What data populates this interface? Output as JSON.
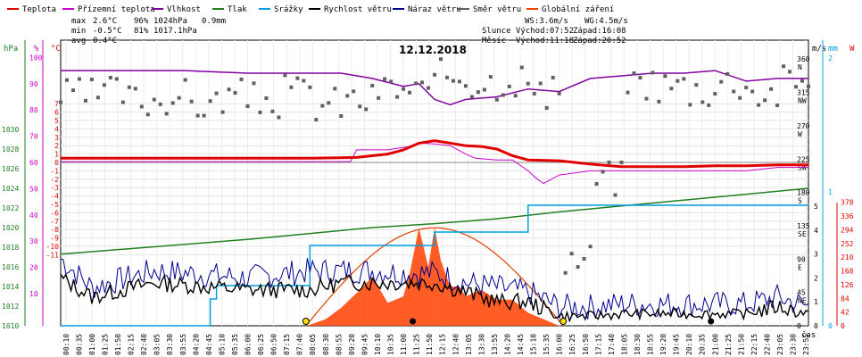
{
  "chart_data": {
    "type": "line",
    "title": "12.12.2018",
    "legend": [
      {
        "key": "teplota",
        "label": "Teplota",
        "color": "#e00000"
      },
      {
        "key": "prizemni",
        "label": "Přízemní teplota",
        "color": "#cc00cc"
      },
      {
        "key": "vlhkost",
        "label": "Vlhkost",
        "color": "#8000a0"
      },
      {
        "key": "tlak",
        "label": "Tlak",
        "color": "#208020"
      },
      {
        "key": "srazky",
        "label": "Srážky",
        "color": "#00a0e0"
      },
      {
        "key": "rychlost",
        "label": "Rychlost větru",
        "color": "#000000"
      },
      {
        "key": "naraz",
        "label": "Náraz větru",
        "color": "#000090"
      },
      {
        "key": "smer",
        "label": "Směr větru",
        "color": "#606060"
      },
      {
        "key": "zareni",
        "label": "Globální záření",
        "color": "#ff4000"
      }
    ],
    "stats": {
      "max_label": "max",
      "max_temp": "2.6°C",
      "max_hum": "96%",
      "max_press": "1024hPa",
      "rain_total": "0.9mm",
      "min_label": "min",
      "min_temp": "-0.5°C",
      "min_hum": "81%",
      "min_press": "1017.1hPa",
      "avg_label": "avg",
      "avg_temp": "0.4°C",
      "ws": "WS:3.6m/s",
      "wg": "WG:4.5m/s",
      "sun_label": "Slunce",
      "sunrise": "Východ:07:52",
      "sunset": "Západ:16:08",
      "moon_label": "Měsíc",
      "moonrise": "Východ:11:18",
      "moonset": "Západ:20:52"
    },
    "axes": {
      "hpa_unit": "hPa",
      "pct_unit": "%",
      "c_unit": "°C",
      "ms_unit": "m/s",
      "mm_unit": "mm",
      "w_unit": "W",
      "time_unit": "čas",
      "hpa_ticks": [
        "1030",
        "1028",
        "1026",
        "1024",
        "1022",
        "1020",
        "1018",
        "1016",
        "1014",
        "1012",
        "1010"
      ],
      "pct_ticks": [
        "100",
        "90",
        "80",
        "70",
        "60",
        "50",
        "40",
        "30",
        "20",
        "10"
      ],
      "c_ticks": [
        "7",
        "6",
        "5",
        "4",
        "3",
        "2",
        "1",
        "0",
        "-1",
        "-2",
        "-3",
        "-4",
        "-5",
        "-6",
        "-7",
        "-8",
        "-9",
        "-10",
        "-11"
      ],
      "dir_ticks": [
        "360",
        "315",
        "270",
        "225",
        "180",
        "135",
        "90",
        "45",
        "0"
      ],
      "dir_letters": [
        "N",
        "NW",
        "W",
        "SW",
        "S",
        "SE",
        "E",
        "NE",
        ""
      ],
      "ms_ticks": [
        "5",
        "4",
        "3",
        "2",
        "1",
        "0"
      ],
      "mm_ticks": [
        "2",
        "1",
        "0"
      ],
      "w_ticks": [
        "378",
        "336",
        "294",
        "252",
        "210",
        "168",
        "126",
        "84",
        "42",
        "0"
      ],
      "time_ticks": [
        "00:10",
        "00:35",
        "01:00",
        "01:25",
        "01:50",
        "02:15",
        "02:40",
        "03:05",
        "03:30",
        "03:55",
        "04:20",
        "04:45",
        "05:10",
        "05:35",
        "06:00",
        "06:25",
        "06:50",
        "07:15",
        "07:40",
        "08:05",
        "08:30",
        "08:55",
        "09:20",
        "09:45",
        "10:10",
        "10:35",
        "11:00",
        "11:25",
        "11:50",
        "12:15",
        "12:40",
        "13:05",
        "13:30",
        "13:55",
        "14:20",
        "14:45",
        "15:10",
        "15:35",
        "16:00",
        "16:25",
        "16:50",
        "17:15",
        "17:40",
        "18:05",
        "18:30",
        "18:55",
        "19:20",
        "19:45",
        "20:10",
        "20:35",
        "21:00",
        "21:25",
        "21:50",
        "22:15",
        "22:40",
        "23:05",
        "23:30",
        "23:55"
      ]
    },
    "series": [
      {
        "name": "Teplota",
        "unit": "°C",
        "x_hours": [
          0,
          3,
          6,
          8,
          9.5,
          10.5,
          11,
          11.5,
          12,
          12.5,
          13,
          13.5,
          14,
          14.5,
          15,
          16,
          17,
          18,
          19,
          20,
          21,
          22,
          23,
          24
        ],
        "values": [
          0.5,
          0.5,
          0.5,
          0.5,
          0.6,
          1.0,
          1.5,
          2.3,
          2.6,
          2.3,
          2.0,
          1.9,
          1.6,
          0.8,
          0.3,
          0.2,
          -0.2,
          -0.5,
          -0.5,
          -0.5,
          -0.4,
          -0.4,
          -0.3,
          -0.3
        ]
      },
      {
        "name": "Přízemní teplota",
        "unit": "°C",
        "x_hours": [
          0,
          3,
          6,
          8,
          9.3,
          9.5,
          10.5,
          11,
          11.4,
          11.5,
          12,
          12.5,
          13,
          13.3,
          14,
          14.5,
          15,
          15.3,
          15.5,
          16,
          17,
          18,
          19,
          20,
          21,
          22,
          23,
          24
        ],
        "values": [
          0.1,
          0.1,
          0.1,
          0.1,
          0.1,
          1.5,
          1.5,
          1.8,
          2.0,
          2.3,
          2.2,
          2.0,
          1.0,
          0.5,
          0.3,
          0.3,
          -1.0,
          -2.0,
          -2.5,
          -1.5,
          -1.0,
          -1.0,
          -1.0,
          -1.0,
          -1.0,
          -1.0,
          -0.6,
          -0.6
        ]
      },
      {
        "name": "Vlhkost",
        "unit": "%",
        "x_hours": [
          0,
          2,
          4,
          6,
          8,
          9,
          10,
          11,
          11.5,
          12,
          12.5,
          13,
          14,
          15,
          16,
          17,
          18,
          19,
          20,
          21,
          22,
          23,
          24
        ],
        "values": [
          95,
          95,
          95,
          94,
          94,
          94,
          92,
          89,
          90,
          84,
          82,
          84,
          85,
          88,
          87,
          92,
          93,
          94,
          94,
          95,
          91,
          92,
          92
        ]
      },
      {
        "name": "Tlak",
        "unit": "hPa",
        "x_hours": [
          0,
          2,
          4,
          6,
          8,
          10,
          12,
          14,
          16,
          18,
          20,
          22,
          24
        ],
        "values": [
          1017.3,
          1017.8,
          1018.3,
          1018.8,
          1019.4,
          1020.0,
          1020.4,
          1020.9,
          1021.6,
          1022.2,
          1022.8,
          1023.4,
          1024.0
        ]
      },
      {
        "name": "Srážky",
        "unit": "mm",
        "x_hours": [
          0,
          4.5,
          4.8,
          5,
          7.9,
          8,
          11.9,
          12,
          14.9,
          15,
          24
        ],
        "values": [
          0,
          0,
          0.2,
          0.3,
          0.3,
          0.6,
          0.6,
          0.7,
          0.7,
          0.9,
          0.9
        ]
      },
      {
        "name": "Rychlost větru",
        "unit": "m/s",
        "x_hours": [
          0,
          1,
          3,
          6,
          8,
          9,
          10,
          11,
          12,
          13,
          14,
          15,
          16,
          17,
          18,
          19,
          20,
          21,
          22,
          23,
          24
        ],
        "values": [
          2.0,
          1.2,
          1.8,
          1.5,
          1.5,
          1.8,
          1.8,
          1.8,
          1.8,
          1.4,
          1.0,
          1.0,
          0.4,
          0.4,
          0.5,
          0.5,
          0.5,
          0.5,
          0.5,
          0.8,
          0.5
        ]
      },
      {
        "name": "Náraz větru",
        "unit": "m/s",
        "x_hours": [
          0,
          1,
          3,
          6,
          8,
          9,
          10,
          11,
          12,
          13,
          14,
          15,
          16,
          17,
          18,
          19,
          20,
          21,
          22,
          23,
          24
        ],
        "values": [
          2.8,
          1.6,
          2.3,
          2.0,
          2.3,
          2.3,
          2.3,
          2.2,
          2.2,
          1.8,
          1.6,
          1.4,
          0.8,
          0.8,
          0.9,
          0.9,
          0.9,
          0.9,
          0.9,
          1.2,
          0.8
        ]
      },
      {
        "name": "Globální záření",
        "unit": "W",
        "x_hours": [
          7.9,
          8.5,
          9,
          9.5,
          10,
          10.5,
          11,
          11.2,
          11.5,
          11.8,
          12,
          12.2,
          12.5,
          12.8,
          13,
          13.5,
          14,
          14.5,
          15,
          15.5,
          16
        ],
        "values": [
          0,
          20,
          55,
          100,
          150,
          70,
          90,
          160,
          300,
          180,
          300,
          200,
          120,
          120,
          90,
          110,
          80,
          80,
          40,
          20,
          0
        ]
      }
    ],
    "wind_direction_deg": {
      "x_hours": [
        0,
        1,
        2,
        3,
        4,
        5,
        6,
        7,
        8,
        9,
        10,
        11,
        12,
        13,
        14,
        15,
        16,
        17,
        18,
        19,
        20,
        21,
        22,
        23,
        24
      ],
      "values": [
        310,
        315,
        305,
        310,
        300,
        310,
        305,
        315,
        300,
        305,
        320,
        315,
        340,
        330,
        335,
        310,
        90,
        200,
        330,
        325,
        320,
        330,
        315,
        330,
        325
      ]
    },
    "clear_sky_radiation_peak_w": 300,
    "sun_markers_hours": [
      7.87,
      16.13
    ],
    "moon_markers_hours": [
      11.3,
      20.87
    ]
  }
}
